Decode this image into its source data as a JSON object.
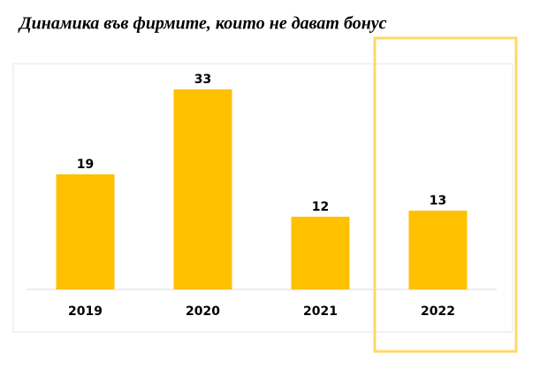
{
  "chart_data": {
    "type": "bar",
    "title": "Динамика във фирмите, които не дават бонус",
    "categories": [
      "2019",
      "2020",
      "2021",
      "2022"
    ],
    "values": [
      19,
      33,
      12,
      13
    ],
    "color": "#ffc000"
  }
}
